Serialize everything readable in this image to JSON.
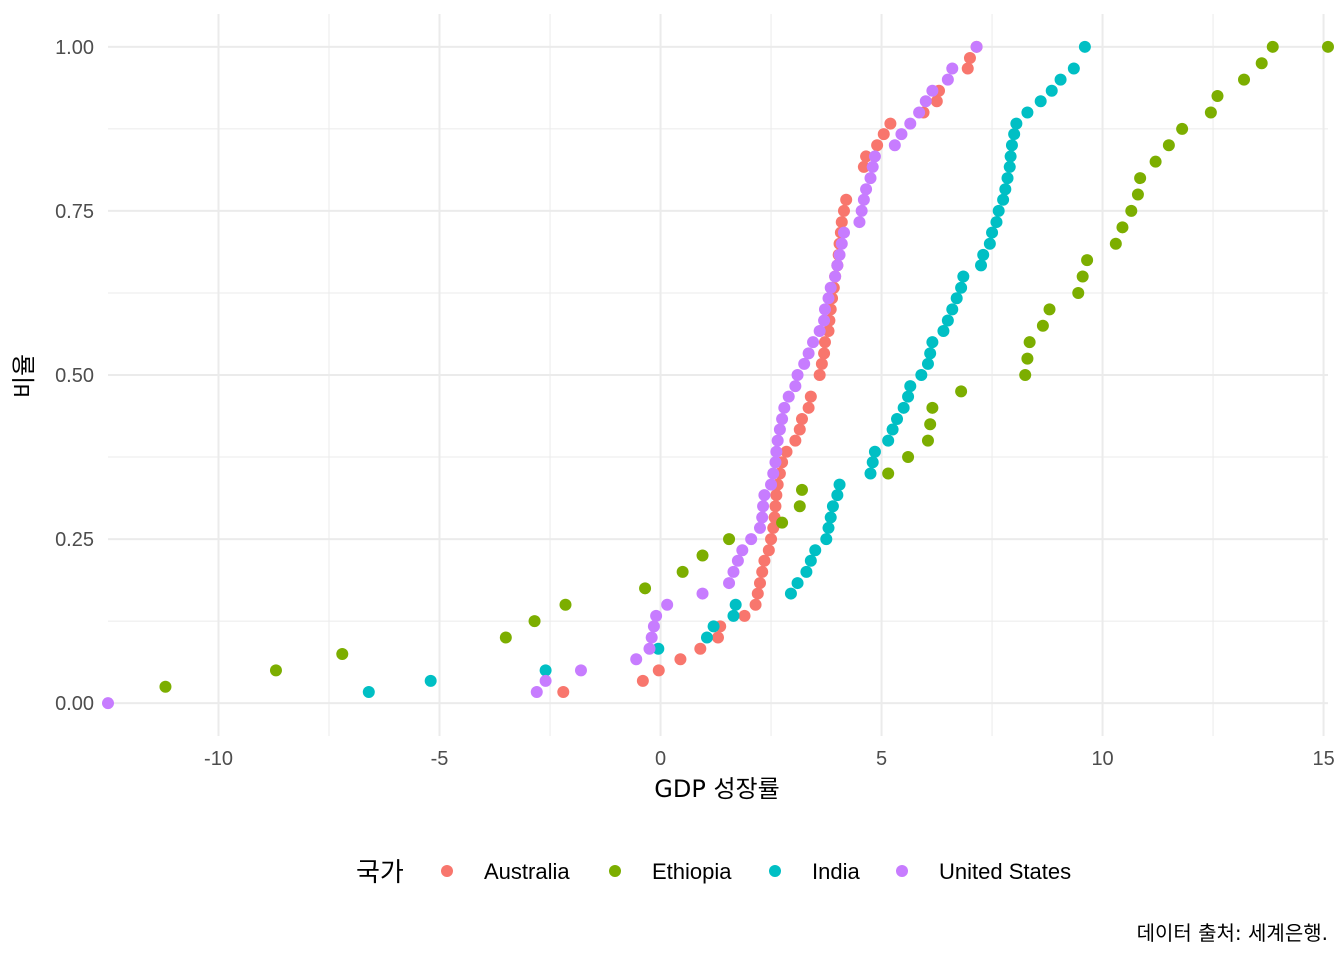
{
  "chart_data": {
    "type": "scatter",
    "title": "",
    "xlabel": "GDP 성장률",
    "ylabel": "비율",
    "caption": "데이터 출처: 세계은행.",
    "legend_title": "국가",
    "legend_position": "bottom",
    "grid": true,
    "xlim": [
      -12.5,
      15.1
    ],
    "ylim": [
      -0.05,
      1.05
    ],
    "x_ticks": [
      -10,
      -5,
      0,
      5,
      10,
      15
    ],
    "x_tick_labels": [
      "-10",
      "-5",
      "0",
      "5",
      "10",
      "15"
    ],
    "y_ticks": [
      0,
      0.25,
      0.5,
      0.75,
      1
    ],
    "y_tick_labels": [
      "0.00",
      "0.25",
      "0.50",
      "0.75",
      "1.00"
    ],
    "series": [
      {
        "name": "Australia",
        "color": "#F8766D",
        "x": [
          -2.2,
          -0.4,
          -0.04,
          0.45,
          0.9,
          1.3,
          1.35,
          1.9,
          2.15,
          2.2,
          2.25,
          2.3,
          2.35,
          2.45,
          2.5,
          2.55,
          2.58,
          2.6,
          2.62,
          2.65,
          2.7,
          2.75,
          2.85,
          3.05,
          3.15,
          3.2,
          3.35,
          3.4,
          3.6,
          3.65,
          3.7,
          3.72,
          3.8,
          3.82,
          3.85,
          3.88,
          3.92,
          3.95,
          4.0,
          4.03,
          4.05,
          4.08,
          4.1,
          4.15,
          4.2,
          4.6,
          4.65,
          4.9,
          5.05,
          5.2,
          5.95,
          6.25,
          6.3,
          6.95,
          7.0,
          7.15
        ],
        "y": [
          0.017,
          0.034,
          0.05,
          0.067,
          0.083,
          0.1,
          0.117,
          0.133,
          0.15,
          0.167,
          0.183,
          0.2,
          0.217,
          0.233,
          0.25,
          0.267,
          0.283,
          0.3,
          0.317,
          0.333,
          0.35,
          0.367,
          0.383,
          0.4,
          0.417,
          0.433,
          0.45,
          0.467,
          0.5,
          0.517,
          0.533,
          0.55,
          0.567,
          0.583,
          0.6,
          0.617,
          0.633,
          0.65,
          0.667,
          0.683,
          0.7,
          0.717,
          0.733,
          0.75,
          0.767,
          0.817,
          0.833,
          0.85,
          0.867,
          0.883,
          0.9,
          0.917,
          0.933,
          0.967,
          0.983,
          1.0
        ]
      },
      {
        "name": "Ethiopia",
        "color": "#7CAE00",
        "x": [
          -11.2,
          -8.7,
          -7.2,
          -3.5,
          -2.85,
          -2.15,
          -0.35,
          0.5,
          0.95,
          1.55,
          2.75,
          3.15,
          3.2,
          5.15,
          5.6,
          6.05,
          6.1,
          6.15,
          6.8,
          8.25,
          8.3,
          8.35,
          8.65,
          8.8,
          9.45,
          9.55,
          9.65,
          10.3,
          10.45,
          10.65,
          10.8,
          10.85,
          11.2,
          11.5,
          11.8,
          12.45,
          12.6,
          13.2,
          13.6,
          13.85
        ],
        "y": [
          0.025,
          0.05,
          0.075,
          0.1,
          0.125,
          0.15,
          0.175,
          0.2,
          0.225,
          0.25,
          0.275,
          0.3,
          0.325,
          0.35,
          0.375,
          0.4,
          0.425,
          0.45,
          0.475,
          0.5,
          0.525,
          0.55,
          0.575,
          0.6,
          0.625,
          0.65,
          0.675,
          0.7,
          0.725,
          0.75,
          0.775,
          0.8,
          0.825,
          0.85,
          0.875,
          0.9,
          0.925,
          0.95,
          0.975,
          1.0
        ]
      },
      {
        "name": "India",
        "color": "#00BFC4",
        "x": [
          -6.6,
          -5.2,
          -2.6,
          -0.05,
          1.05,
          1.2,
          1.65,
          1.7,
          2.95,
          3.1,
          3.3,
          3.4,
          3.5,
          3.75,
          3.8,
          3.85,
          3.9,
          4.0,
          4.05,
          4.75,
          4.8,
          4.85,
          5.15,
          5.25,
          5.35,
          5.5,
          5.6,
          5.65,
          5.9,
          6.05,
          6.1,
          6.15,
          6.4,
          6.5,
          6.6,
          6.7,
          6.8,
          6.85,
          7.25,
          7.3,
          7.45,
          7.5,
          7.6,
          7.65,
          7.75,
          7.8,
          7.85,
          7.9,
          7.92,
          7.95,
          8.0,
          8.05,
          8.3,
          8.6,
          8.85,
          9.05,
          9.35,
          9.6
        ],
        "y": [
          0.017,
          0.034,
          0.05,
          0.083,
          0.1,
          0.117,
          0.133,
          0.15,
          0.167,
          0.183,
          0.2,
          0.217,
          0.233,
          0.25,
          0.267,
          0.283,
          0.3,
          0.317,
          0.333,
          0.35,
          0.367,
          0.383,
          0.4,
          0.417,
          0.433,
          0.45,
          0.467,
          0.483,
          0.5,
          0.517,
          0.533,
          0.55,
          0.567,
          0.583,
          0.6,
          0.617,
          0.633,
          0.65,
          0.667,
          0.683,
          0.7,
          0.717,
          0.733,
          0.75,
          0.767,
          0.783,
          0.8,
          0.817,
          0.833,
          0.85,
          0.867,
          0.883,
          0.9,
          0.917,
          0.933,
          0.95,
          0.967,
          1.0
        ]
      },
      {
        "name": "United States",
        "color": "#C77CFF",
        "x": [
          -2.8,
          -2.6,
          -1.8,
          -0.55,
          -0.25,
          -0.2,
          -0.15,
          -0.1,
          0.15,
          0.95,
          1.55,
          1.65,
          1.75,
          1.85,
          2.05,
          2.25,
          2.3,
          2.32,
          2.35,
          2.5,
          2.55,
          2.6,
          2.62,
          2.65,
          2.7,
          2.75,
          2.8,
          2.9,
          3.05,
          3.1,
          3.25,
          3.35,
          3.45,
          3.6,
          3.7,
          3.72,
          3.8,
          3.85,
          3.95,
          4.0,
          4.05,
          4.1,
          4.15,
          4.5,
          4.55,
          4.6,
          4.65,
          4.75,
          4.8,
          4.85,
          5.3,
          5.45,
          5.65,
          5.85,
          6.0,
          6.15,
          6.5,
          6.6,
          7.15
        ],
        "y": [
          0.017,
          0.034,
          0.05,
          0.067,
          0.083,
          0.1,
          0.117,
          0.133,
          0.15,
          0.167,
          0.183,
          0.2,
          0.217,
          0.233,
          0.25,
          0.267,
          0.283,
          0.3,
          0.317,
          0.333,
          0.35,
          0.367,
          0.383,
          0.4,
          0.417,
          0.433,
          0.45,
          0.467,
          0.483,
          0.5,
          0.517,
          0.533,
          0.55,
          0.567,
          0.583,
          0.6,
          0.617,
          0.633,
          0.65,
          0.667,
          0.683,
          0.7,
          0.717,
          0.733,
          0.75,
          0.767,
          0.783,
          0.8,
          0.817,
          0.833,
          0.85,
          0.867,
          0.883,
          0.9,
          0.917,
          0.933,
          0.95,
          0.967,
          1.0
        ]
      }
    ],
    "extra_points": [
      {
        "series": "United States",
        "x": -12.5,
        "y": 0.0
      },
      {
        "series": "Ethiopia",
        "x": 15.1,
        "y": 1.0
      }
    ]
  }
}
